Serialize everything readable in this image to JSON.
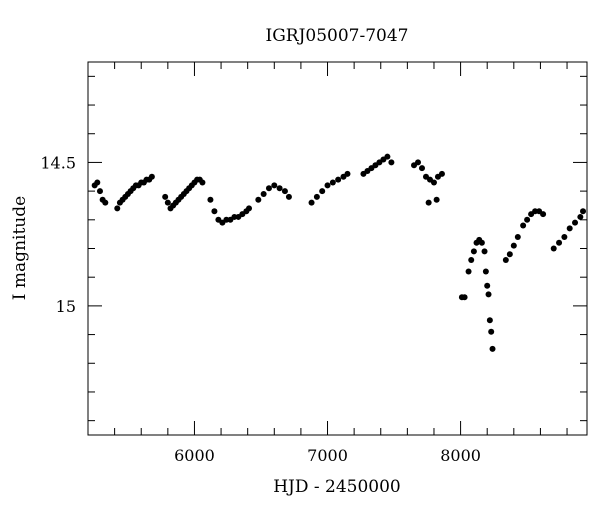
{
  "chart_data": {
    "type": "scatter",
    "title": "IGRJ05007-7047",
    "xlabel": "HJD - 2450000",
    "ylabel": "I magnitude",
    "xlim": [
      5200,
      8950
    ],
    "ylim": [
      15.45,
      14.15
    ],
    "y_inverted": true,
    "xticks": [
      6000,
      7000,
      8000
    ],
    "yticks": [
      14.5,
      15
    ],
    "grid": false,
    "marker_color": "#000000",
    "segments": [
      {
        "x": [
          5250,
          5270,
          5290,
          5310,
          5330
        ],
        "y": [
          14.58,
          14.57,
          14.6,
          14.63,
          14.64
        ]
      },
      {
        "x": [
          5420,
          5440,
          5460,
          5480,
          5500,
          5520,
          5540,
          5560,
          5580,
          5600,
          5620,
          5640,
          5660,
          5680
        ],
        "y": [
          14.66,
          14.64,
          14.63,
          14.62,
          14.61,
          14.6,
          14.59,
          14.58,
          14.58,
          14.57,
          14.57,
          14.56,
          14.56,
          14.55
        ]
      },
      {
        "x": [
          5780,
          5800,
          5820,
          5840,
          5860,
          5880,
          5900,
          5920,
          5940,
          5960,
          5980,
          6000,
          6020,
          6040,
          6060
        ],
        "y": [
          14.62,
          14.64,
          14.66,
          14.65,
          14.64,
          14.63,
          14.62,
          14.61,
          14.6,
          14.59,
          14.58,
          14.57,
          14.56,
          14.56,
          14.57
        ]
      },
      {
        "x": [
          6120,
          6150,
          6180,
          6210,
          6240,
          6270,
          6300,
          6330,
          6360,
          6390,
          6410
        ],
        "y": [
          14.63,
          14.67,
          14.7,
          14.71,
          14.7,
          14.7,
          14.69,
          14.69,
          14.68,
          14.67,
          14.66
        ]
      },
      {
        "x": [
          6480,
          6520,
          6560,
          6600,
          6640,
          6680,
          6710
        ],
        "y": [
          14.63,
          14.61,
          14.59,
          14.58,
          14.59,
          14.6,
          14.62
        ]
      },
      {
        "x": [
          6880,
          6920,
          6960,
          7000,
          7040,
          7080,
          7120,
          7150
        ],
        "y": [
          14.64,
          14.62,
          14.6,
          14.58,
          14.57,
          14.56,
          14.55,
          14.54
        ]
      },
      {
        "x": [
          7270,
          7300,
          7330,
          7360,
          7390,
          7420,
          7450,
          7480
        ],
        "y": [
          14.54,
          14.53,
          14.52,
          14.51,
          14.5,
          14.49,
          14.48,
          14.5
        ]
      },
      {
        "x": [
          7650,
          7680,
          7710,
          7740,
          7770,
          7800,
          7830,
          7860
        ],
        "y": [
          14.51,
          14.5,
          14.52,
          14.55,
          14.56,
          14.57,
          14.55,
          14.54
        ]
      },
      {
        "x": [
          7760,
          7820
        ],
        "y": [
          14.64,
          14.63
        ]
      },
      {
        "x": [
          8010,
          8030
        ],
        "y": [
          14.97,
          14.97
        ]
      },
      {
        "x": [
          8060,
          8080,
          8100,
          8120,
          8140,
          8160,
          8180
        ],
        "y": [
          14.88,
          14.84,
          14.81,
          14.78,
          14.77,
          14.78,
          14.81
        ]
      },
      {
        "x": [
          8190,
          8200,
          8210,
          8220,
          8230,
          8240
        ],
        "y": [
          14.88,
          14.93,
          14.96,
          15.05,
          15.09,
          15.15
        ]
      },
      {
        "x": [
          8340,
          8370,
          8400,
          8430,
          8470,
          8500,
          8530,
          8560,
          8590,
          8620
        ],
        "y": [
          14.84,
          14.82,
          14.79,
          14.76,
          14.72,
          14.7,
          14.68,
          14.67,
          14.67,
          14.68
        ]
      },
      {
        "x": [
          8700,
          8740,
          8780,
          8820,
          8860,
          8900,
          8920
        ],
        "y": [
          14.8,
          14.78,
          14.76,
          14.73,
          14.71,
          14.69,
          14.67
        ]
      }
    ]
  }
}
